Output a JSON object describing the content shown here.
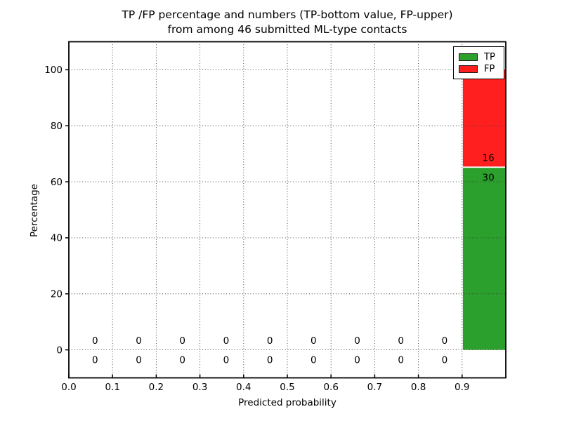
{
  "chart_data": {
    "type": "bar",
    "stacked": true,
    "title_line1": "TP /FP percentage and numbers (TP-bottom value, FP-upper)",
    "title_line2": "from among 46 submitted ML-type contacts",
    "xlabel": "Predicted probability",
    "ylabel": "Percentage",
    "total_contacts": 46,
    "bin_width": 0.1,
    "bin_starts": [
      0.0,
      0.1,
      0.2,
      0.3,
      0.4,
      0.5,
      0.6,
      0.7,
      0.8,
      0.9
    ],
    "series": [
      {
        "name": "TP",
        "color": "#2ca02c",
        "counts": [
          0,
          0,
          0,
          0,
          0,
          0,
          0,
          0,
          0,
          30
        ],
        "percents": [
          0,
          0,
          0,
          0,
          0,
          0,
          0,
          0,
          0,
          65.217
        ]
      },
      {
        "name": "FP",
        "color": "#ff1f1f",
        "counts": [
          0,
          0,
          0,
          0,
          0,
          0,
          0,
          0,
          0,
          16
        ],
        "percents": [
          0,
          0,
          0,
          0,
          0,
          0,
          0,
          0,
          0,
          34.783
        ]
      }
    ],
    "xlim": [
      0.0,
      1.0
    ],
    "ylim": [
      -10,
      110
    ],
    "xtick_labels": [
      "0.0",
      "0.1",
      "0.2",
      "0.3",
      "0.4",
      "0.5",
      "0.6",
      "0.7",
      "0.8",
      "0.9"
    ],
    "ytick_values": [
      0,
      20,
      40,
      60,
      80,
      100
    ],
    "grid_style": "dotted",
    "grid_color": "#333333",
    "axis_color": "#000000",
    "text_color": "#000000",
    "legend": {
      "position": "upper right",
      "entries": [
        {
          "label": "TP",
          "color": "#2ca02c"
        },
        {
          "label": "FP",
          "color": "#ff1f1f"
        }
      ]
    }
  }
}
